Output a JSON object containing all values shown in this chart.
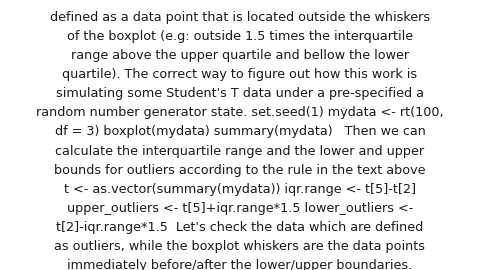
{
  "background_color": "#ffffff",
  "text_color": "#1a1a1a",
  "font_size": 9.2,
  "font_weight": "normal",
  "lines": [
    "defined as a data point that is located outside the whiskers",
    "of the boxplot (e.g: outside 1.5 times the interquartile",
    "range above the upper quartile and bellow the lower",
    "quartile). The correct way to figure out how this work is",
    "simulating some Student's T data under a pre-specified a",
    "random number generator state. set.seed(1) mydata <- rt(100,",
    "df = 3) boxplot(mydata) summary(mydata)   Then we can",
    "calculate the interquartile range and the lower and upper",
    "bounds for outliers according to the rule in the text above",
    "t <- as.vector(summary(mydata)) iqr.range <- t[5]-t[2]",
    "upper_outliers <- t[5]+iqr.range*1.5 lower_outliers <-",
    "t[2]-iqr.range*1.5  Let's check the data which are defined",
    "as outliers, while the boxplot whiskers are the data points",
    "immediately before/after the lower/upper boundaries."
  ]
}
